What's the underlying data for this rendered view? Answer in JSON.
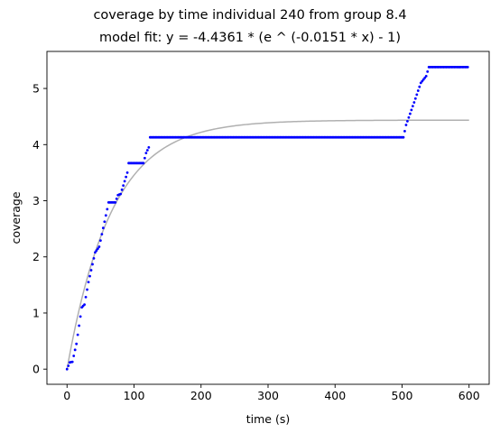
{
  "colors": {
    "points": "#0000ff",
    "fit_line": "#b0b0b0",
    "axes": "#000000",
    "background": "#ffffff"
  },
  "chart_data": {
    "type": "scatter",
    "title": "coverage by time individual 240 from group 8.4",
    "subtitle": "model fit: y = -4.4361 * (e ^ (-0.0151 * x) - 1)",
    "xlabel": "time (s)",
    "ylabel": "coverage",
    "xlim": [
      -30,
      630
    ],
    "ylim": [
      -0.27,
      5.66
    ],
    "xticks": [
      0,
      100,
      200,
      300,
      400,
      500,
      600
    ],
    "yticks": [
      0,
      1,
      2,
      3,
      4,
      5
    ],
    "grid": false,
    "legend": "none",
    "model_fit": {
      "a": 4.4361,
      "b": 0.0151,
      "x_range": [
        0,
        600
      ]
    },
    "observed_series": {
      "x_step": 2,
      "x_range": [
        0,
        598
      ],
      "keyframes": [
        [
          0,
          0.0
        ],
        [
          4,
          0.12
        ],
        [
          8,
          0.13
        ],
        [
          14,
          0.45
        ],
        [
          22,
          1.1
        ],
        [
          26,
          1.15
        ],
        [
          32,
          1.55
        ],
        [
          42,
          2.08
        ],
        [
          48,
          2.18
        ],
        [
          60,
          2.85
        ],
        [
          62,
          2.97
        ],
        [
          72,
          2.97
        ],
        [
          76,
          3.1
        ],
        [
          80,
          3.12
        ],
        [
          90,
          3.5
        ],
        [
          92,
          3.67
        ],
        [
          114,
          3.67
        ],
        [
          118,
          3.85
        ],
        [
          122,
          3.95
        ],
        [
          124,
          4.13
        ],
        [
          502,
          4.13
        ],
        [
          506,
          4.35
        ],
        [
          512,
          4.55
        ],
        [
          520,
          4.82
        ],
        [
          528,
          5.1
        ],
        [
          536,
          5.22
        ],
        [
          540,
          5.38
        ],
        [
          598,
          5.38
        ]
      ]
    }
  }
}
